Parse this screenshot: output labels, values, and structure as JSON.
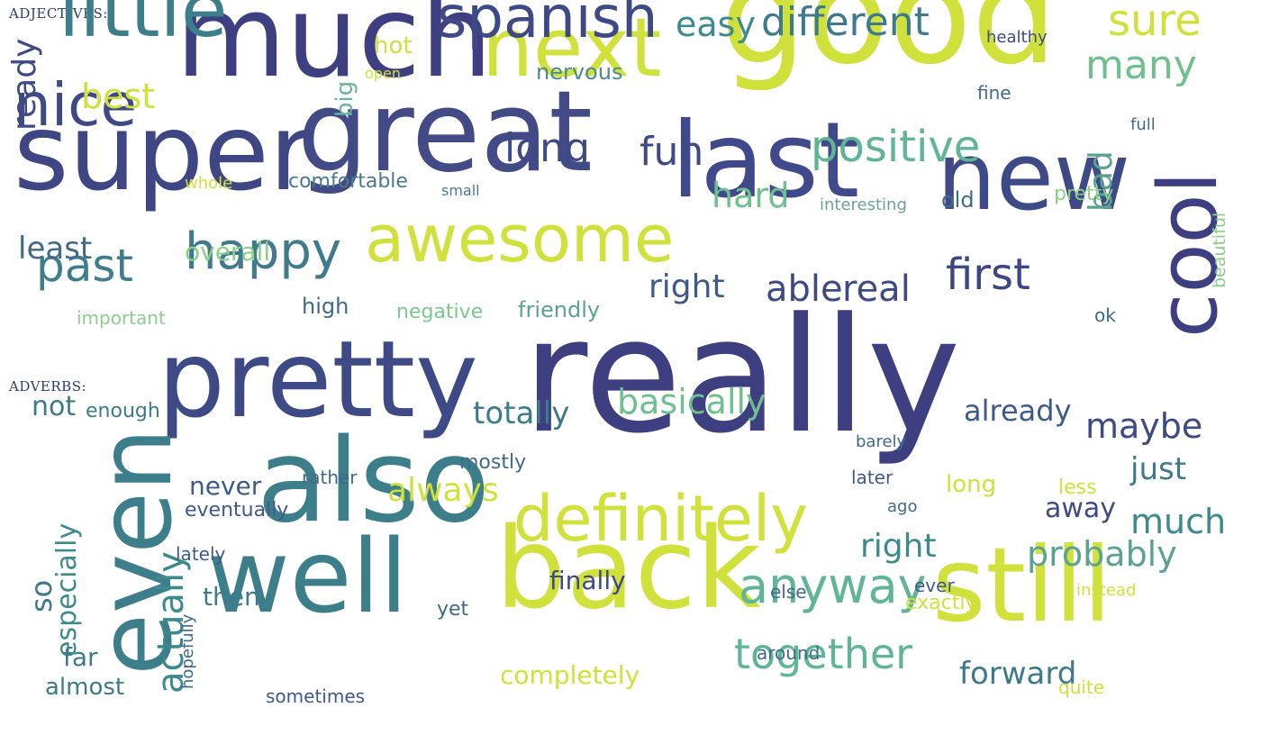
{
  "adjectives": {
    "title": "ADJECTIVES:",
    "words": [
      {
        "text": "good",
        "color": "#cfe13a"
      },
      {
        "text": "much",
        "color": "#3d3f80"
      },
      {
        "text": "great",
        "color": "#434b86"
      },
      {
        "text": "super",
        "color": "#3f4684"
      },
      {
        "text": "last",
        "color": "#404989"
      },
      {
        "text": "new",
        "color": "#3d4a86"
      },
      {
        "text": "next",
        "color": "#cfe13a"
      },
      {
        "text": "little",
        "color": "#3d7e8b"
      },
      {
        "text": "cool",
        "color": "#3d3f80"
      },
      {
        "text": "awesome",
        "color": "#cfe13a"
      },
      {
        "text": "spanish",
        "color": "#3e4a86"
      },
      {
        "text": "nice",
        "color": "#3d4a86"
      },
      {
        "text": "happy",
        "color": "#3f7b8c"
      },
      {
        "text": "past",
        "color": "#3f7d8b"
      },
      {
        "text": "positive",
        "color": "#5fb596"
      },
      {
        "text": "different",
        "color": "#3d7a8b"
      },
      {
        "text": "sure",
        "color": "#cfe13a"
      },
      {
        "text": "first",
        "color": "#3f4684"
      },
      {
        "text": "long",
        "color": "#3e4a86"
      },
      {
        "text": "fun",
        "color": "#3e4a86"
      },
      {
        "text": "many",
        "color": "#6ec08f"
      },
      {
        "text": "real",
        "color": "#3d4a86"
      },
      {
        "text": "able",
        "color": "#3d4a86"
      },
      {
        "text": "easy",
        "color": "#3d8a8c"
      },
      {
        "text": "ready",
        "color": "#3d4a86"
      },
      {
        "text": "best",
        "color": "#cfe13a"
      },
      {
        "text": "bad",
        "color": "#5aa48f"
      },
      {
        "text": "hard",
        "color": "#6ec08f"
      },
      {
        "text": "right",
        "color": "#3f5a8a"
      },
      {
        "text": "least",
        "color": "#3f6a8b"
      },
      {
        "text": "big",
        "color": "#66b79a"
      },
      {
        "text": "hot",
        "color": "#cfe13a"
      },
      {
        "text": "nervous",
        "color": "#4a8a92"
      },
      {
        "text": "overall",
        "color": "#8ccf8a"
      },
      {
        "text": "high",
        "color": "#3f6a8b"
      },
      {
        "text": "friendly",
        "color": "#5aa48f"
      },
      {
        "text": "negative",
        "color": "#7bc88f"
      },
      {
        "text": "important",
        "color": "#8ccf8a"
      },
      {
        "text": "comfortable",
        "color": "#4a7a8c"
      },
      {
        "text": "pretty",
        "color": "#8ccf8a"
      },
      {
        "text": "old",
        "color": "#3f6a8b"
      },
      {
        "text": "interesting",
        "color": "#6ea0a0"
      },
      {
        "text": "fine",
        "color": "#3f6a8b"
      },
      {
        "text": "healthy",
        "color": "#3d4a86"
      },
      {
        "text": "full",
        "color": "#3f6a8b"
      },
      {
        "text": "beautiful",
        "color": "#8ccf8a"
      },
      {
        "text": "ok",
        "color": "#3f6a8b"
      },
      {
        "text": "whole",
        "color": "#cfe13a"
      },
      {
        "text": "small",
        "color": "#4a7a8c"
      },
      {
        "text": "open",
        "color": "#cfe13a"
      }
    ]
  },
  "adverbs": {
    "title": "ADVERBS:",
    "words": [
      {
        "text": "really",
        "color": "#3d3f80"
      },
      {
        "text": "pretty",
        "color": "#3d4a86"
      },
      {
        "text": "also",
        "color": "#3d7e8b"
      },
      {
        "text": "even",
        "color": "#3d7e8b"
      },
      {
        "text": "well",
        "color": "#3d7e8b"
      },
      {
        "text": "back",
        "color": "#cfe13a"
      },
      {
        "text": "still",
        "color": "#cfe13a"
      },
      {
        "text": "definitely",
        "color": "#cfe13a"
      },
      {
        "text": "anyway",
        "color": "#5fb596"
      },
      {
        "text": "together",
        "color": "#5fb596"
      },
      {
        "text": "basically",
        "color": "#6ec08f"
      },
      {
        "text": "totally",
        "color": "#3d7a8b"
      },
      {
        "text": "maybe",
        "color": "#3d4a86"
      },
      {
        "text": "already",
        "color": "#3d5a88"
      },
      {
        "text": "just",
        "color": "#3d7a8b"
      },
      {
        "text": "much",
        "color": "#3d8a8c"
      },
      {
        "text": "probably",
        "color": "#5aa48f"
      },
      {
        "text": "right",
        "color": "#3d8a8c"
      },
      {
        "text": "forward",
        "color": "#3d7a8b"
      },
      {
        "text": "completely",
        "color": "#cfe13a"
      },
      {
        "text": "always",
        "color": "#cfe13a"
      },
      {
        "text": "never",
        "color": "#3d5a88"
      },
      {
        "text": "finally",
        "color": "#3d4a86"
      },
      {
        "text": "away",
        "color": "#3d4a86"
      },
      {
        "text": "actually",
        "color": "#3d8a8c"
      },
      {
        "text": "especially",
        "color": "#3d8a8c"
      },
      {
        "text": "so",
        "color": "#3d7a8b"
      },
      {
        "text": "then",
        "color": "#3d7a8b"
      },
      {
        "text": "far",
        "color": "#3d7a8b"
      },
      {
        "text": "almost",
        "color": "#3d7a8b"
      },
      {
        "text": "not",
        "color": "#3d7a8b"
      },
      {
        "text": "enough",
        "color": "#3d7a8b"
      },
      {
        "text": "mostly",
        "color": "#3f6a8b"
      },
      {
        "text": "rather",
        "color": "#3f6a8b"
      },
      {
        "text": "eventually",
        "color": "#3f5a8a"
      },
      {
        "text": "lately",
        "color": "#3f5a8a"
      },
      {
        "text": "hopefully",
        "color": "#3f6a8b"
      },
      {
        "text": "yet",
        "color": "#3f6a8b"
      },
      {
        "text": "sometimes",
        "color": "#3f5a8a"
      },
      {
        "text": "barely",
        "color": "#3f6a8b"
      },
      {
        "text": "later",
        "color": "#3f5a8a"
      },
      {
        "text": "ago",
        "color": "#3f6a8b"
      },
      {
        "text": "long",
        "color": "#cfe13a"
      },
      {
        "text": "less",
        "color": "#cfe13a"
      },
      {
        "text": "ever",
        "color": "#3f5a8a"
      },
      {
        "text": "else",
        "color": "#3f6a8b"
      },
      {
        "text": "instead",
        "color": "#cfe13a"
      },
      {
        "text": "exactly",
        "color": "#cfe13a"
      },
      {
        "text": "around",
        "color": "#3f6a8b"
      },
      {
        "text": "quite",
        "color": "#cfe13a"
      }
    ]
  }
}
